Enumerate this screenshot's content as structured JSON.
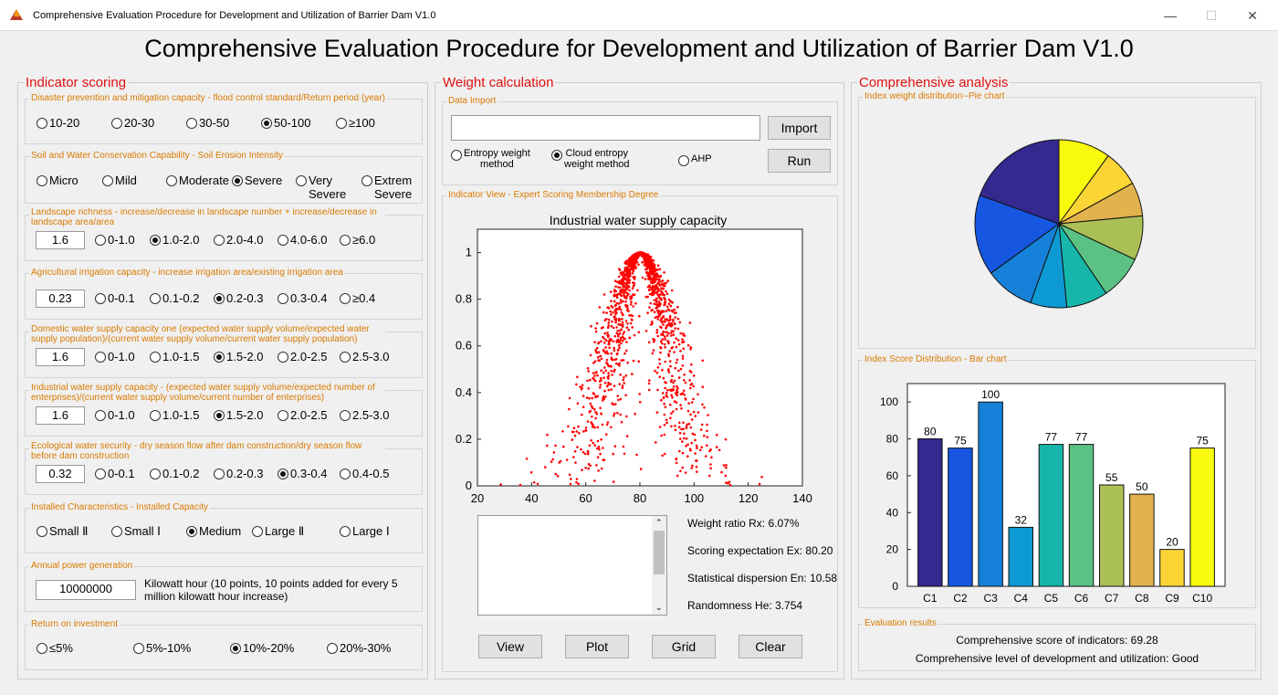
{
  "window": {
    "title": "Comprehensive Evaluation Procedure for Development and Utilization of Barrier Dam V1.0"
  },
  "app_title": "Comprehensive Evaluation Procedure for Development and Utilization of Barrier Dam V1.0",
  "indicator_scoring": {
    "title": "Indicator scoring",
    "flood": {
      "title": "Disaster prevention and mitigation capacity - flood control standard/Return period (year)",
      "options": [
        "10-20",
        "20-30",
        "30-50",
        "50-100",
        "≥100"
      ],
      "selected": 3
    },
    "soil": {
      "title": "Soil and Water Conservation Capability - Soil Erosion Intensity",
      "options": [
        "Micro",
        "Mild",
        "Moderate",
        "Severe",
        "Very\nSevere",
        "Extrem\nSevere"
      ],
      "selected": 3
    },
    "landscape": {
      "title": "Landscape richness - increase/decrease in landscape number + increase/decrease in landscape area/area",
      "value": "1.6",
      "options": [
        "0-1.0",
        "1.0-2.0",
        "2.0-4.0",
        "4.0-6.0",
        "≥6.0"
      ],
      "selected": 1
    },
    "irrigation": {
      "title": "Agricultural irrigation capacity - increase irrigation area/existing irrigation area",
      "value": "0.23",
      "options": [
        "0-0.1",
        "0.1-0.2",
        "0.2-0.3",
        "0.3-0.4",
        "≥0.4"
      ],
      "selected": 2
    },
    "domestic": {
      "title": "Domestic water supply capacity one (expected water supply volume/expected water supply population)/(current water supply volume/current water supply population)",
      "value": "1.6",
      "options": [
        "0-1.0",
        "1.0-1.5",
        "1.5-2.0",
        "2.0-2.5",
        "2.5-3.0"
      ],
      "selected": 2
    },
    "industrial": {
      "title": "Industrial water supply capacity - (expected water supply volume/expected number of enterprises)/(current water supply volume/current number of enterprises)",
      "value": "1.6",
      "options": [
        "0-1.0",
        "1.0-1.5",
        "1.5-2.0",
        "2.0-2.5",
        "2.5-3.0"
      ],
      "selected": 2
    },
    "ecological": {
      "title": "Ecological water security - dry season flow after dam construction/dry season flow before dam construction",
      "value": "0.32",
      "options": [
        "0-0.1",
        "0.1-0.2",
        "0.2-0.3",
        "0.3-0.4",
        "0.4-0.5"
      ],
      "selected": 3
    },
    "installed": {
      "title": "Installed Characteristics - Installed Capacity",
      "options": [
        "Small Ⅱ",
        "Small Ⅰ",
        "Medium",
        "Large Ⅱ",
        "Large Ⅰ"
      ],
      "selected": 2
    },
    "power": {
      "title": "Annual power generation",
      "value": "10000000",
      "note": "Kilowatt hour (10 points, 10 points added for every 5 million kilowatt hour increase)"
    },
    "roi": {
      "title": "Return on investment",
      "options": [
        "≤5%",
        "5%-10%",
        "10%-20%",
        "20%-30%"
      ],
      "selected": 2
    }
  },
  "weight_calculation": {
    "title": "Weight calculation",
    "data_import": {
      "title": "Data Import",
      "path": "",
      "import_label": "Import",
      "run_label": "Run",
      "methods": [
        "Entropy weight\nmethod",
        "Cloud entropy\nweight method",
        "AHP"
      ],
      "selected": 1
    },
    "indicator_view": {
      "title": "Indicator View - Expert Scoring Membership Degree",
      "stats": {
        "rx": "Weight ratio Rx: 6.07%",
        "ex": "Scoring expectation Ex: 80.20",
        "en": "Statistical dispersion En: 10.58",
        "he": "Randomness He: 3.754"
      },
      "buttons": [
        "View",
        "Plot",
        "Grid",
        "Clear"
      ]
    }
  },
  "chart_data": [
    {
      "type": "scatter",
      "title": "Industrial water supply capacity",
      "xlabel": "",
      "ylabel": "",
      "xlim": [
        20,
        140
      ],
      "ylim": [
        0,
        1.1
      ],
      "xticks": [
        20,
        40,
        60,
        80,
        100,
        120,
        140
      ],
      "yticks": [
        0,
        0.2,
        0.4,
        0.6,
        0.8,
        1
      ],
      "cloud_model": {
        "Ex": 80.2,
        "En": 10.58,
        "He": 3.754,
        "n_points": 1500
      },
      "color": "#ff0000"
    },
    {
      "type": "pie",
      "title": "Index weight distribution--Pie chart",
      "colors": [
        "#f9f90e",
        "#fbd535",
        "#e2b24d",
        "#abbf57",
        "#5cc284",
        "#17b6ab",
        "#0d9ad3",
        "#1581d8",
        "#1656e0",
        "#33298e"
      ]
    },
    {
      "type": "bar",
      "title": "Index Score Distribution - Bar chart",
      "categories": [
        "C1",
        "C2",
        "C3",
        "C4",
        "C5",
        "C6",
        "C7",
        "C8",
        "C9",
        "C10"
      ],
      "values": [
        80,
        75,
        100,
        32,
        77,
        77,
        55,
        50,
        20,
        75
      ],
      "ylim": [
        0,
        110
      ],
      "yticks": [
        0,
        20,
        40,
        60,
        80,
        100
      ],
      "colors": [
        "#33298e",
        "#1656e0",
        "#1581d8",
        "#0d9ad3",
        "#17b6ab",
        "#5cc284",
        "#abbf57",
        "#e2b24d",
        "#fbd535",
        "#f9f90e"
      ]
    }
  ],
  "comprehensive_analysis": {
    "title": "Comprehensive analysis",
    "pie_title": "Index weight distribution--Pie chart",
    "bar_title": "Index Score Distribution - Bar chart",
    "results": {
      "title": "Evaluation results",
      "score": "Comprehensive score of indicators: 69.28",
      "level": "Comprehensive level of development and utilization: Good"
    }
  }
}
